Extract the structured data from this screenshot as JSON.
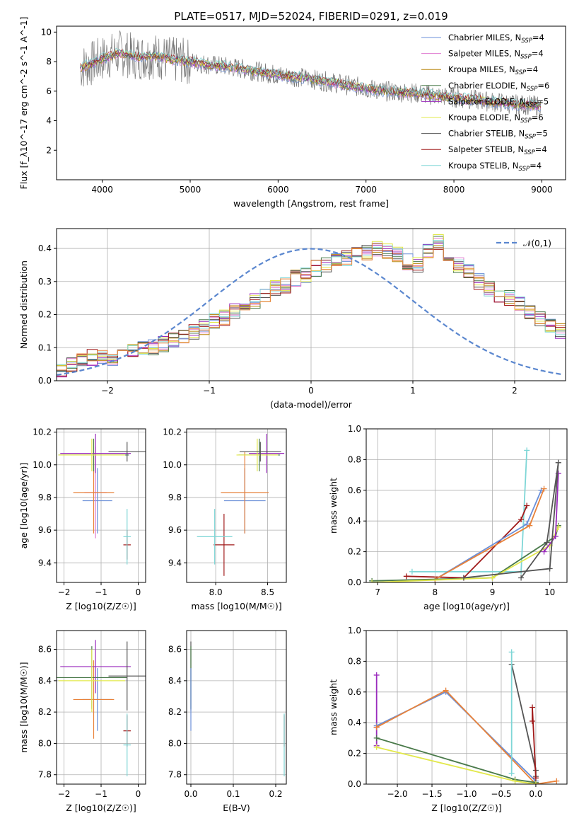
{
  "title": "PLATE=0517, MJD=52024, FIBERID=0291, z=0.019",
  "colors": {
    "Chabrier MILES": "#6a8fd8",
    "Salpeter MILES": "#e07bd0",
    "Kroupa MILES": "#b8860b",
    "Chabrier ELODIE": "#4a7a4a",
    "Salpeter ELODIE": "#9a2bbd",
    "Kroupa ELODIE": "#e2e84a",
    "Chabrier STELIB": "#555555",
    "Salpeter STELIB": "#a01a1a",
    "Kroupa STELIB": "#7ed6d6",
    "orange": "#e8823a",
    "normal": "#5b87cf"
  },
  "chart_data": [
    {
      "type": "line",
      "panel": "spectrum",
      "xlabel": "wavelength [Angstrom, rest frame]",
      "ylabel": "Flux [f_λ10^-17 erg cm^-2 s^-1 A^-1]",
      "xlim": [
        3480,
        9270
      ],
      "ylim": [
        0,
        10.4
      ],
      "xticks": [
        4000,
        5000,
        6000,
        7000,
        8000,
        9000
      ],
      "yticks": [
        2,
        4,
        6,
        8,
        10
      ],
      "legend_position": "top-right",
      "data_curve": {
        "x": [
          3750,
          3900,
          4000,
          4200,
          4400,
          4600,
          4800,
          5000,
          5200,
          5500,
          5800,
          6000,
          6300,
          6600,
          6900,
          7200,
          7500,
          7800,
          8100,
          8400,
          8700,
          9000
        ],
        "y": [
          7.6,
          7.9,
          8.2,
          8.6,
          8.3,
          8.4,
          8.1,
          8.0,
          7.8,
          7.6,
          7.3,
          7.1,
          6.9,
          6.6,
          6.3,
          6.0,
          5.9,
          5.7,
          5.5,
          5.3,
          5.1,
          5.0
        ]
      },
      "series": [
        {
          "name": "Chabrier MILES, N_SSP=4",
          "label_main": "Chabrier MILES, N",
          "label_sub": "SSP",
          "label_tail": "=4",
          "color_key": "Chabrier MILES"
        },
        {
          "name": "Salpeter MILES, N_SSP=4",
          "label_main": "Salpeter MILES, N",
          "label_sub": "SSP",
          "label_tail": "=4",
          "color_key": "Salpeter MILES"
        },
        {
          "name": "Kroupa MILES, N_SSP=4",
          "label_main": "Kroupa MILES, N",
          "label_sub": "SSP",
          "label_tail": "=4",
          "color_key": "Kroupa MILES"
        },
        {
          "name": "Chabrier ELODIE, N_SSP=6",
          "label_main": "Chabrier ELODIE, N",
          "label_sub": "SSP",
          "label_tail": "=6",
          "color_key": "Chabrier ELODIE"
        },
        {
          "name": "Salpeter ELODIE, N_SSP=5",
          "label_main": "Salpeter ELODIE, N",
          "label_sub": "SSP",
          "label_tail": "=5",
          "color_key": "Salpeter ELODIE"
        },
        {
          "name": "Kroupa ELODIE, N_SSP=6",
          "label_main": "Kroupa ELODIE, N",
          "label_sub": "SSP",
          "label_tail": "=6",
          "color_key": "Kroupa ELODIE"
        },
        {
          "name": "Chabrier STELIB, N_SSP=5",
          "label_main": "Chabrier STELIB, N",
          "label_sub": "SSP",
          "label_tail": "=5",
          "color_key": "Chabrier STELIB"
        },
        {
          "name": "Salpeter STELIB, N_SSP=4",
          "label_main": "Salpeter STELIB, N",
          "label_sub": "SSP",
          "label_tail": "=4",
          "color_key": "Salpeter STELIB"
        },
        {
          "name": "Kroupa STELIB, N_SSP=4",
          "label_main": "Kroupa STELIB, N",
          "label_sub": "SSP",
          "label_tail": "=4",
          "color_key": "Kroupa STELIB"
        }
      ]
    },
    {
      "type": "line",
      "panel": "residuals",
      "xlabel": "(data-model)/error",
      "ylabel": "Normed distribution",
      "xlim": [
        -2.5,
        2.5
      ],
      "ylim": [
        0,
        0.46
      ],
      "xticks": [
        -2,
        -1,
        0,
        1,
        2
      ],
      "yticks": [
        0.0,
        0.1,
        0.2,
        0.3,
        0.4
      ],
      "legend": "𝒩(0,1)",
      "legend_position": "top-right",
      "bin_edges_start": -2.5,
      "bin_width": 0.1,
      "base_hist": [
        0.03,
        0.05,
        0.06,
        0.07,
        0.07,
        0.07,
        0.08,
        0.09,
        0.1,
        0.1,
        0.11,
        0.12,
        0.13,
        0.15,
        0.16,
        0.18,
        0.19,
        0.21,
        0.22,
        0.24,
        0.26,
        0.28,
        0.29,
        0.31,
        0.32,
        0.34,
        0.35,
        0.36,
        0.37,
        0.38,
        0.39,
        0.4,
        0.39,
        0.38,
        0.36,
        0.35,
        0.39,
        0.42,
        0.38,
        0.35,
        0.33,
        0.3,
        0.28,
        0.26,
        0.25,
        0.23,
        0.21,
        0.19,
        0.17,
        0.15
      ]
    },
    {
      "type": "scatter",
      "panel": "age-vs-Z",
      "xlabel": "Z [log10(Z/Z☉)]",
      "ylabel": "age [log10(age/yr)]",
      "xlim": [
        -2.2,
        0.2
      ],
      "ylim": [
        9.28,
        10.22
      ],
      "xticks": [
        -2,
        -1,
        0
      ],
      "yticks": [
        9.4,
        9.6,
        9.8,
        10.0,
        10.2
      ],
      "points": [
        {
          "k": "Chabrier MILES",
          "x": -1.1,
          "y": 9.78,
          "xe": 0.4,
          "ye": 0.2
        },
        {
          "k": "Salpeter MILES",
          "x": -1.15,
          "y": 9.83,
          "xe": 0.3,
          "ye": 0.28
        },
        {
          "k": "orange",
          "x": -1.2,
          "y": 9.83,
          "xe": 0.55,
          "ye": 0.25
        },
        {
          "k": "Chabrier ELODIE",
          "x": -1.2,
          "y": 10.06,
          "xe": 0.95,
          "ye": 0.1
        },
        {
          "k": "Salpeter ELODIE",
          "x": -1.15,
          "y": 10.07,
          "xe": 0.95,
          "ye": 0.12
        },
        {
          "k": "Kroupa ELODIE",
          "x": -1.25,
          "y": 10.06,
          "xe": 0.9,
          "ye": 0.1
        },
        {
          "k": "Chabrier STELIB",
          "x": -0.3,
          "y": 10.08,
          "xe": 0.5,
          "ye": 0.06
        },
        {
          "k": "Salpeter STELIB",
          "x": -0.3,
          "y": 9.51,
          "xe": 0.1,
          "ye": 0.09
        },
        {
          "k": "Kroupa STELIB",
          "x": -0.3,
          "y": 9.56,
          "xe": 0.1,
          "ye": 0.17
        }
      ]
    },
    {
      "type": "scatter",
      "panel": "age-vs-mass",
      "xlabel": "mass [log10(M/M☉)]",
      "xlim": [
        7.72,
        8.68
      ],
      "ylim": [
        9.28,
        10.22
      ],
      "xticks": [
        8.0,
        8.5
      ],
      "yticks": [
        9.4,
        9.6,
        9.8,
        10.0,
        10.2
      ],
      "points": [
        {
          "k": "Chabrier MILES",
          "x": 8.28,
          "y": 9.78,
          "xe": 0.2,
          "ye": 0.2
        },
        {
          "k": "orange",
          "x": 8.28,
          "y": 9.83,
          "xe": 0.23,
          "ye": 0.25
        },
        {
          "k": "Chabrier ELODIE",
          "x": 8.42,
          "y": 10.06,
          "xe": 0.2,
          "ye": 0.1
        },
        {
          "k": "Salpeter ELODIE",
          "x": 8.49,
          "y": 10.07,
          "xe": 0.17,
          "ye": 0.12
        },
        {
          "k": "Kroupa ELODIE",
          "x": 8.4,
          "y": 10.06,
          "xe": 0.2,
          "ye": 0.1
        },
        {
          "k": "Chabrier STELIB",
          "x": 8.43,
          "y": 10.08,
          "xe": 0.2,
          "ye": 0.06
        },
        {
          "k": "Salpeter STELIB",
          "x": 8.08,
          "y": 9.51,
          "xe": 0.1,
          "ye": 0.19
        },
        {
          "k": "Kroupa STELIB",
          "x": 7.99,
          "y": 9.56,
          "xe": 0.17,
          "ye": 0.17
        }
      ]
    },
    {
      "type": "line",
      "panel": "mass-weight-vs-age",
      "xlabel": "age [log10(age/yr)]",
      "ylabel": "mass weight",
      "xlim": [
        6.8,
        10.3
      ],
      "ylim": [
        0,
        1.0
      ],
      "xticks": [
        7,
        8,
        9,
        10
      ],
      "yticks": [
        0.0,
        0.2,
        0.4,
        0.6,
        0.8,
        1.0
      ],
      "series": [
        {
          "k": "Kroupa STELIB",
          "x": [
            7.6,
            9.5,
            9.6
          ],
          "y": [
            0.07,
            0.07,
            0.86
          ]
        },
        {
          "k": "Salpeter STELIB",
          "x": [
            7.5,
            8.5,
            9.5,
            9.6
          ],
          "y": [
            0.04,
            0.03,
            0.41,
            0.5
          ]
        },
        {
          "k": "Chabrier MILES",
          "x": [
            8.0,
            9.6,
            9.85
          ],
          "y": [
            0.02,
            0.38,
            0.6
          ]
        },
        {
          "k": "orange",
          "x": [
            8.0,
            9.65,
            9.9
          ],
          "y": [
            0.02,
            0.37,
            0.61
          ]
        },
        {
          "k": "Chabrier ELODIE",
          "x": [
            6.9,
            9.0,
            10.1,
            10.15
          ],
          "y": [
            0.01,
            0.03,
            0.3,
            0.37
          ]
        },
        {
          "k": "Kroupa ELODIE",
          "x": [
            6.9,
            9.0,
            10.0,
            10.15
          ],
          "y": [
            0.0,
            0.03,
            0.24,
            0.36
          ]
        },
        {
          "k": "Salpeter ELODIE",
          "x": [
            9.9,
            10.1,
            10.15
          ],
          "y": [
            0.2,
            0.3,
            0.71
          ]
        },
        {
          "k": "Chabrier STELIB",
          "x": [
            8.5,
            10.0,
            10.15
          ],
          "y": [
            0.03,
            0.09,
            0.78
          ]
        },
        {
          "k": "Chabrier STELIB",
          "x": [
            9.5,
            9.95,
            10.15
          ],
          "y": [
            0.03,
            0.26,
            0.78
          ]
        }
      ]
    },
    {
      "type": "scatter",
      "panel": "mass-vs-Z",
      "xlabel": "Z [log10(Z/Z☉)]",
      "ylabel": "mass [log10(M/M☉)]",
      "xlim": [
        -2.2,
        0.2
      ],
      "ylim": [
        7.74,
        8.72
      ],
      "xticks": [
        -2,
        -1,
        0
      ],
      "yticks": [
        7.8,
        8.0,
        8.2,
        8.4,
        8.6
      ],
      "points": [
        {
          "k": "Chabrier MILES",
          "x": -1.1,
          "y": 8.28,
          "xe": 0.4,
          "ye": 0.2
        },
        {
          "k": "orange",
          "x": -1.2,
          "y": 8.28,
          "xe": 0.55,
          "ye": 0.25
        },
        {
          "k": "Chabrier ELODIE",
          "x": -1.25,
          "y": 8.42,
          "xe": 0.95,
          "ye": 0.2
        },
        {
          "k": "Salpeter ELODIE",
          "x": -1.15,
          "y": 8.49,
          "xe": 0.95,
          "ye": 0.17
        },
        {
          "k": "Kroupa ELODIE",
          "x": -1.25,
          "y": 8.4,
          "xe": 0.9,
          "ye": 0.2
        },
        {
          "k": "Chabrier STELIB",
          "x": -0.3,
          "y": 8.43,
          "xe": 0.5,
          "ye": 0.22
        },
        {
          "k": "Salpeter STELIB",
          "x": -0.3,
          "y": 8.08,
          "xe": 0.1,
          "ye": 0.1
        },
        {
          "k": "Kroupa STELIB",
          "x": -0.3,
          "y": 7.99,
          "xe": 0.1,
          "ye": 0.2
        }
      ]
    },
    {
      "type": "scatter",
      "panel": "mass-vs-EBV",
      "xlabel": "E(B-V)",
      "xlim": [
        -0.01,
        0.225
      ],
      "ylim": [
        7.74,
        8.72
      ],
      "xticks": [
        0.0,
        0.1,
        0.2
      ],
      "yticks": [
        7.8,
        8.0,
        8.2,
        8.4,
        8.6
      ],
      "points": [
        {
          "k": "Chabrier STELIB",
          "x": 0.0,
          "y": 8.43,
          "xe": 0.0,
          "ye": 0.22
        },
        {
          "k": "Chabrier ELODIE",
          "x": 0.0,
          "y": 8.42,
          "xe": 0.0,
          "ye": 0.2
        },
        {
          "k": "Chabrier MILES",
          "x": 0.0,
          "y": 8.28,
          "xe": 0.0,
          "ye": 0.2
        },
        {
          "k": "Salpeter STELIB",
          "x": 0.22,
          "y": 8.08,
          "xe": 0.0,
          "ye": 0.1
        },
        {
          "k": "Kroupa STELIB",
          "x": 0.22,
          "y": 7.99,
          "xe": 0.0,
          "ye": 0.2
        }
      ]
    },
    {
      "type": "line",
      "panel": "mass-weight-vs-Z",
      "xlabel": "Z [log10(Z/Z☉)]",
      "ylabel": "mass weight",
      "xlim": [
        -2.45,
        0.45
      ],
      "ylim": [
        0,
        1.0
      ],
      "xticks": [
        -2.0,
        -1.5,
        -1.0,
        -0.5,
        0.0
      ],
      "yticks": [
        0.0,
        0.2,
        0.4,
        0.6,
        0.8,
        1.0
      ],
      "series": [
        {
          "k": "Salpeter ELODIE",
          "x": [
            -2.3,
            -2.3,
            -2.3
          ],
          "y": [
            0.25,
            0.37,
            0.71
          ]
        },
        {
          "k": "Chabrier MILES",
          "x": [
            -2.3,
            -1.3,
            0.0
          ],
          "y": [
            0.38,
            0.6,
            0.02
          ]
        },
        {
          "k": "orange",
          "x": [
            -2.3,
            -1.3,
            0.0,
            0.3
          ],
          "y": [
            0.37,
            0.61,
            0.0,
            0.02
          ]
        },
        {
          "k": "Chabrier ELODIE",
          "x": [
            -2.3,
            -0.3,
            0.0
          ],
          "y": [
            0.3,
            0.03,
            0.01
          ]
        },
        {
          "k": "Kroupa ELODIE",
          "x": [
            -2.3,
            -0.3,
            0.0
          ],
          "y": [
            0.24,
            0.02,
            0.0
          ]
        },
        {
          "k": "Chabrier STELIB",
          "x": [
            -0.35,
            0.0,
            0.0
          ],
          "y": [
            0.78,
            0.09,
            0.05
          ]
        },
        {
          "k": "Kroupa STELIB",
          "x": [
            -0.35,
            -0.35
          ],
          "y": [
            0.07,
            0.86
          ]
        },
        {
          "k": "Salpeter STELIB",
          "x": [
            -0.05,
            -0.05,
            0.0
          ],
          "y": [
            0.41,
            0.5,
            0.04
          ]
        }
      ]
    }
  ]
}
